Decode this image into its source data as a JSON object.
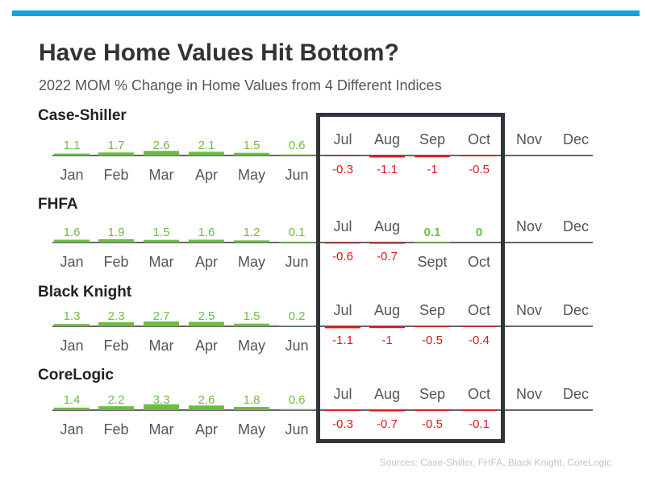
{
  "header": {
    "title": "Have Home Values Hit Bottom?",
    "subtitle": "2022 MOM % Change in Home Values from 4 Different Indices"
  },
  "footer": {
    "source": "Sources: Case-Shiller, FHFA, Black Knight, CoreLogic"
  },
  "colors": {
    "positive": "#6cbd45",
    "negative": "#e0161c",
    "axis": "#333333",
    "month_label": "#555555",
    "accent_bar": "#16a2dd",
    "frame": "#2f353b"
  },
  "chart_data": [
    {
      "type": "bar",
      "title": "Case-Shiller",
      "categories": [
        "Jan",
        "Feb",
        "Mar",
        "Apr",
        "May",
        "Jun",
        "Jul",
        "Aug",
        "Sep",
        "Oct",
        "Nov",
        "Dec"
      ],
      "values": [
        1.1,
        1.7,
        2.6,
        2.1,
        1.5,
        0.6,
        -0.3,
        -1.1,
        -1,
        -0.5,
        null,
        null
      ],
      "value_labels": [
        "1.1",
        "1.7",
        "2.6",
        "2.1",
        "1.5",
        "0.6",
        "-0.3",
        "-1.1",
        "-1",
        "-0.5",
        "",
        ""
      ]
    },
    {
      "type": "bar",
      "title": "FHFA",
      "categories": [
        "Jan",
        "Feb",
        "Mar",
        "Apr",
        "May",
        "Jun",
        "Jul",
        "Aug",
        "Sept",
        "Oct",
        "Nov",
        "Dec"
      ],
      "values": [
        1.6,
        1.9,
        1.5,
        1.6,
        1.2,
        0.1,
        -0.6,
        -0.7,
        0.1,
        0,
        null,
        null
      ],
      "value_labels": [
        "1.6",
        "1.9",
        "1.5",
        "1.6",
        "1.2",
        "0.1",
        "-0.6",
        "-0.7",
        "0.1",
        "0",
        "",
        ""
      ]
    },
    {
      "type": "bar",
      "title": "Black Knight",
      "categories": [
        "Jan",
        "Feb",
        "Mar",
        "Apr",
        "May",
        "Jun",
        "Jul",
        "Aug",
        "Sep",
        "Oct",
        "Nov",
        "Dec"
      ],
      "values": [
        1.3,
        2.3,
        2.7,
        2.5,
        1.5,
        0.2,
        -1.1,
        -1,
        -0.5,
        -0.4,
        null,
        null
      ],
      "value_labels": [
        "1.3",
        "2.3",
        "2.7",
        "2.5",
        "1.5",
        "0.2",
        "-1.1",
        "-1",
        "-0.5",
        "-0.4",
        "",
        ""
      ]
    },
    {
      "type": "bar",
      "title": "CoreLogic",
      "categories": [
        "Jan",
        "Feb",
        "Mar",
        "Apr",
        "May",
        "Jun",
        "Jul",
        "Aug",
        "Sep",
        "Oct",
        "Nov",
        "Dec"
      ],
      "values": [
        1.4,
        2.2,
        3.3,
        2.6,
        1.8,
        0.6,
        -0.3,
        -0.7,
        -0.5,
        -0.1,
        null,
        null
      ],
      "value_labels": [
        "1.4",
        "2.2",
        "3.3",
        "2.6",
        "1.8",
        "0.6",
        "-0.3",
        "-0.7",
        "-0.5",
        "-0.1",
        "",
        ""
      ]
    }
  ]
}
